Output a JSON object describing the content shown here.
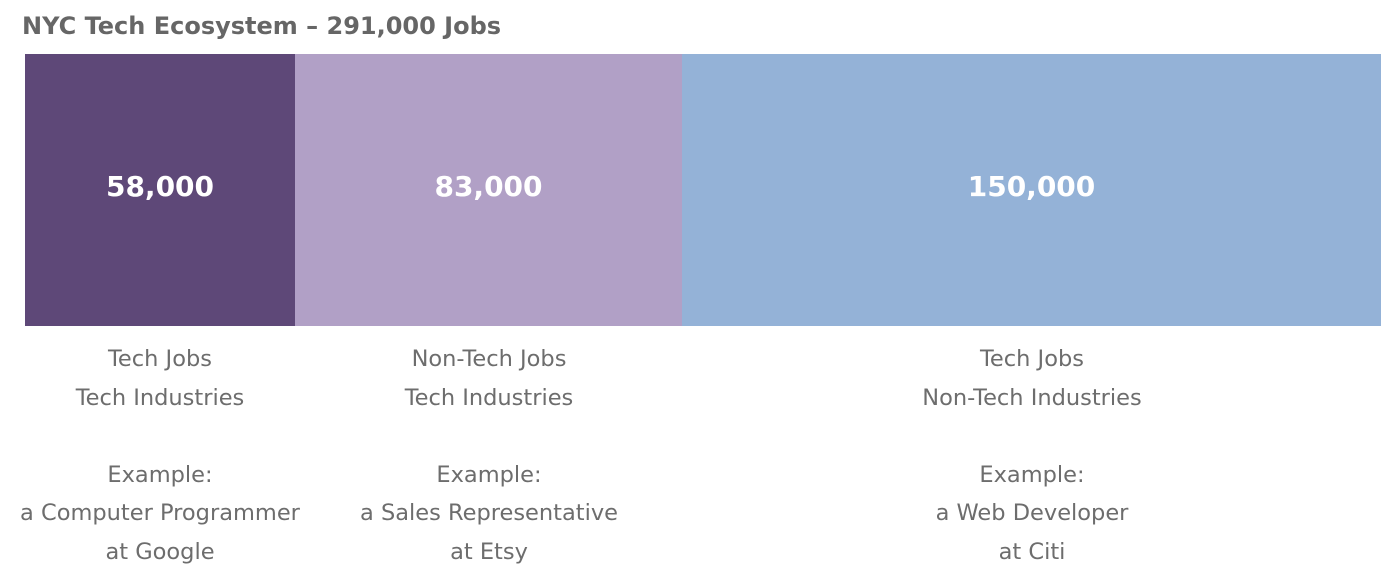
{
  "chart_data": {
    "type": "bar",
    "orientation": "horizontal-stacked",
    "title": "NYC Tech Ecosystem – 291,000 Jobs",
    "total": 291000,
    "values": [
      58000,
      83000,
      150000
    ],
    "value_labels": [
      "58,000",
      "83,000",
      "150,000"
    ],
    "colors": [
      "#5e4878",
      "#b1a0c6",
      "#94b2d7"
    ],
    "categories": [
      {
        "line1": "Tech Jobs",
        "line2": "Tech Industries",
        "example_label": "Example:",
        "example_line1": "a Computer Programmer",
        "example_line2": "at Google"
      },
      {
        "line1": "Non-Tech Jobs",
        "line2": "Tech Industries",
        "example_label": "Example:",
        "example_line1": "a Sales Representative",
        "example_line2": "at Etsy"
      },
      {
        "line1": "Tech Jobs",
        "line2": "Non-Tech Industries",
        "example_label": "Example:",
        "example_line1": "a Web Developer",
        "example_line2": "at Citi"
      }
    ]
  }
}
